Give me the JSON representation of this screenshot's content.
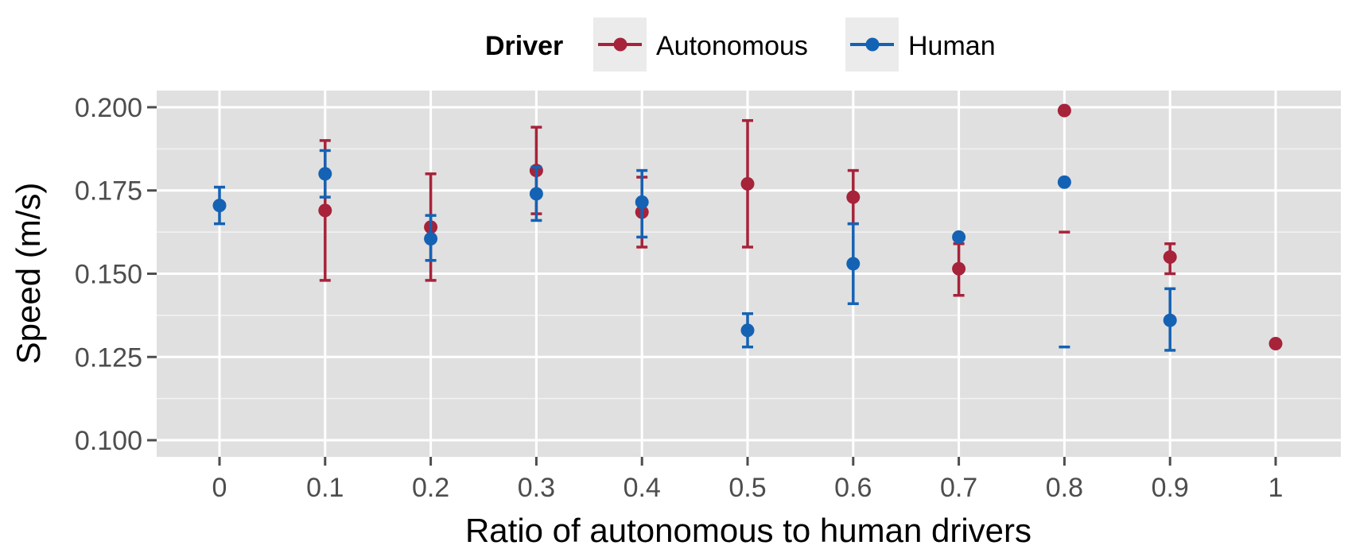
{
  "chart_data": {
    "type": "scatter",
    "xlabel": "Ratio of autonomous to human drivers",
    "ylabel": "Speed (m/s)",
    "categories": [
      "0",
      "0.1",
      "0.2",
      "0.3",
      "0.4",
      "0.5",
      "0.6",
      "0.7",
      "0.8",
      "0.9",
      "1"
    ],
    "y_ticks": [
      "0.100",
      "0.125",
      "0.150",
      "0.175",
      "0.200"
    ],
    "ylim": [
      0.095,
      0.205
    ],
    "grid": true,
    "legend": {
      "title": "Driver",
      "placement": "top"
    },
    "series": [
      {
        "name": "Autonomous",
        "color": "#A6233A",
        "points": [
          {
            "x": "0.1",
            "y": 0.169,
            "lo": 0.148,
            "hi": 0.19
          },
          {
            "x": "0.2",
            "y": 0.164,
            "lo": 0.148,
            "hi": 0.18
          },
          {
            "x": "0.3",
            "y": 0.181,
            "lo": 0.168,
            "hi": 0.194
          },
          {
            "x": "0.4",
            "y": 0.1685,
            "lo": 0.158,
            "hi": 0.179
          },
          {
            "x": "0.5",
            "y": 0.177,
            "lo": 0.158,
            "hi": 0.196
          },
          {
            "x": "0.6",
            "y": 0.173,
            "lo": 0.165,
            "hi": 0.181
          },
          {
            "x": "0.7",
            "y": 0.1515,
            "lo": 0.1435,
            "hi": 0.159
          },
          {
            "x": "0.8",
            "y": 0.199,
            "lo": 0.1625,
            "hi": null
          },
          {
            "x": "0.9",
            "y": 0.155,
            "lo": 0.15,
            "hi": 0.159
          },
          {
            "x": "1",
            "y": 0.129,
            "lo": null,
            "hi": null
          }
        ]
      },
      {
        "name": "Human",
        "color": "#1462B4",
        "points": [
          {
            "x": "0",
            "y": 0.1705,
            "lo": 0.165,
            "hi": 0.176
          },
          {
            "x": "0.1",
            "y": 0.18,
            "lo": 0.173,
            "hi": 0.187
          },
          {
            "x": "0.2",
            "y": 0.1605,
            "lo": 0.154,
            "hi": 0.1675
          },
          {
            "x": "0.3",
            "y": 0.174,
            "lo": 0.166,
            "hi": 0.182
          },
          {
            "x": "0.4",
            "y": 0.1715,
            "lo": 0.161,
            "hi": 0.181
          },
          {
            "x": "0.5",
            "y": 0.133,
            "lo": 0.128,
            "hi": 0.138
          },
          {
            "x": "0.6",
            "y": 0.153,
            "lo": 0.141,
            "hi": 0.165
          },
          {
            "x": "0.7",
            "y": 0.161,
            "lo": null,
            "hi": null
          },
          {
            "x": "0.8",
            "y": 0.1775,
            "lo": 0.128,
            "hi": null
          },
          {
            "x": "0.9",
            "y": 0.136,
            "lo": 0.127,
            "hi": 0.1455
          }
        ]
      }
    ]
  }
}
